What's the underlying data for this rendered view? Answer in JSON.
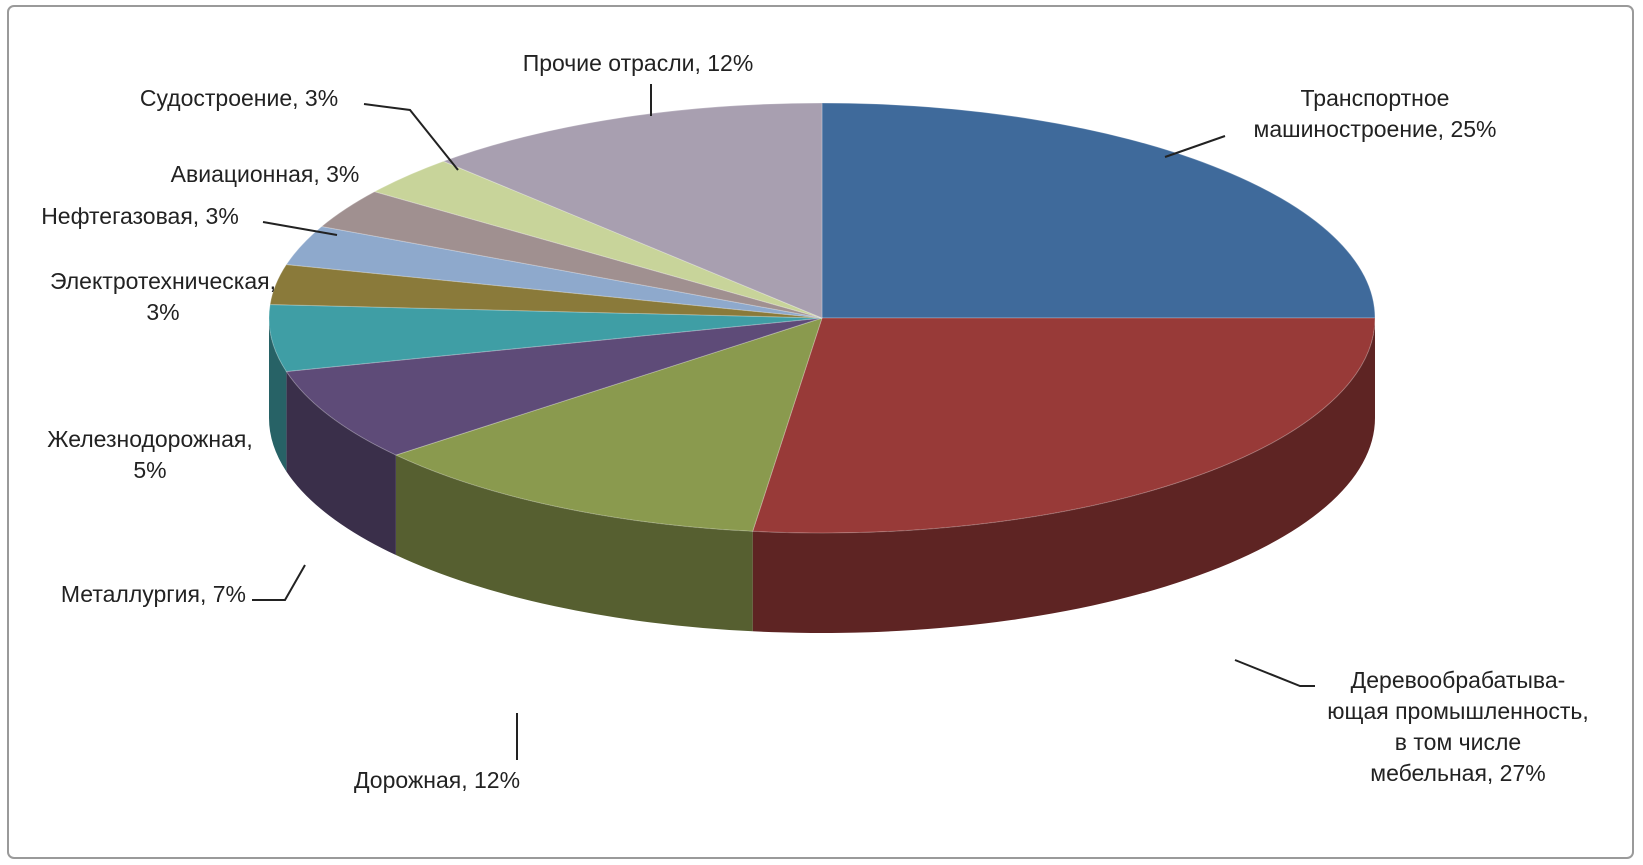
{
  "chart_data": {
    "type": "pie3d",
    "categories": [
      [
        "Транспортное",
        "машиностроение, 25%"
      ],
      [
        "Деревообрабатыва-",
        "ющая промышленность,",
        "в том числе",
        "мебельная, 27%"
      ],
      [
        "Дорожная, 12%"
      ],
      [
        "Металлургия, 7%"
      ],
      [
        "Железнодорожная,",
        "5%"
      ],
      [
        "Электротехническая,",
        "3%"
      ],
      [
        "Нефтегазовая, 3%"
      ],
      [
        "Авиационная, 3%"
      ],
      [
        "Судостроение, 3%"
      ],
      [
        "Прочие отрасли, 12%"
      ]
    ],
    "values": [
      25,
      27,
      12,
      7,
      5,
      3,
      3,
      3,
      3,
      12
    ],
    "colors": [
      "#3f6a9b",
      "#983a38",
      "#8a9a4e",
      "#5e4b78",
      "#3f9ea5",
      "#8a7a3a",
      "#8ea9cc",
      "#a09090",
      "#c8d49a",
      "#a89fb0"
    ]
  }
}
